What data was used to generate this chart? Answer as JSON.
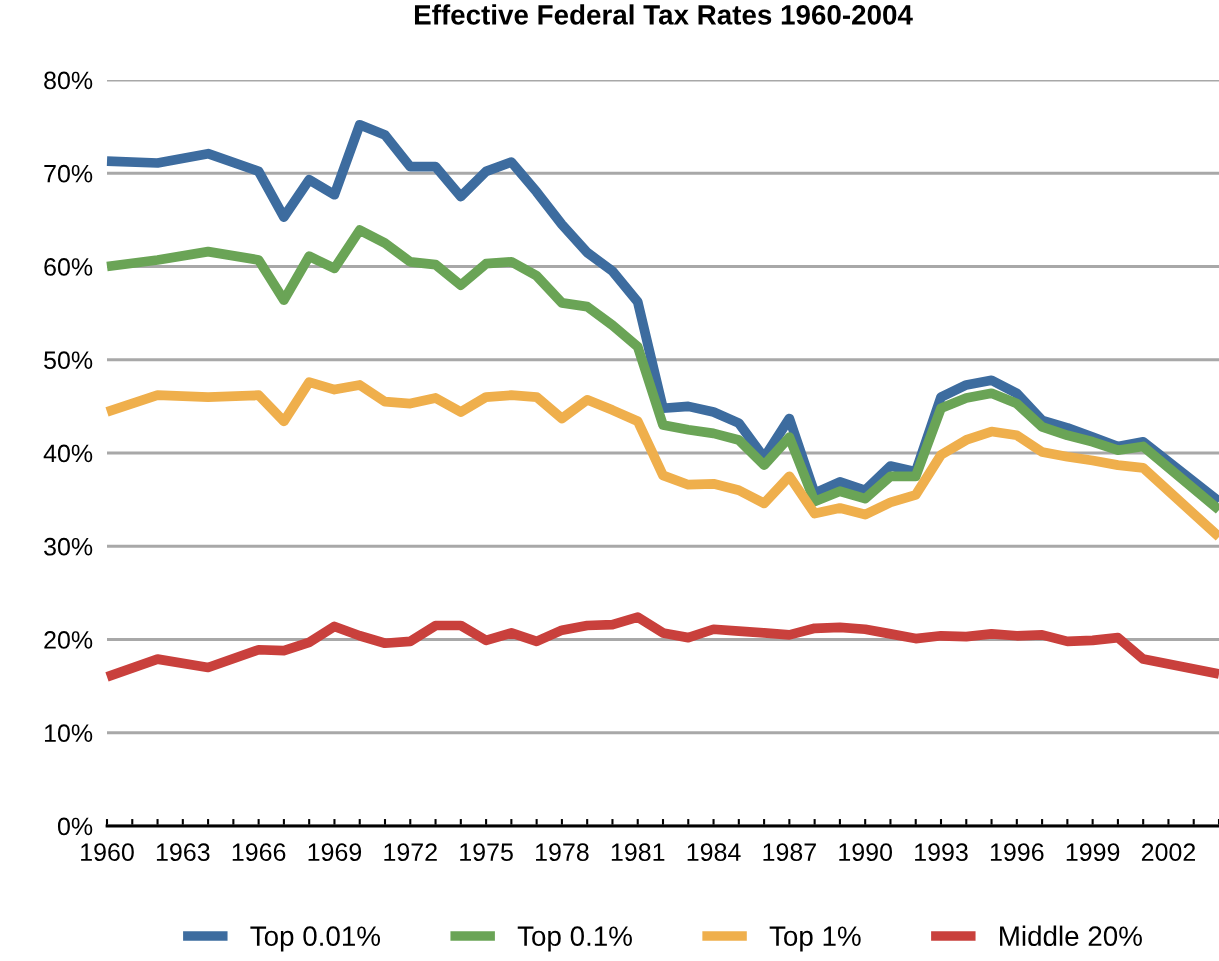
{
  "chart_data": {
    "type": "line",
    "title": "Effective Federal Tax Rates 1960-2004",
    "x": [
      1960,
      1962,
      1964,
      1966,
      1967,
      1968,
      1969,
      1970,
      1971,
      1972,
      1973,
      1974,
      1975,
      1976,
      1977,
      1978,
      1979,
      1980,
      1981,
      1982,
      1983,
      1984,
      1985,
      1986,
      1987,
      1988,
      1989,
      1990,
      1991,
      1992,
      1993,
      1994,
      1995,
      1996,
      1997,
      1998,
      1999,
      2000,
      2001,
      2004
    ],
    "series": [
      {
        "name": "Top 0.01%",
        "color": "#3d6c9f",
        "values": [
          71.3,
          71.1,
          72.1,
          70.2,
          65.3,
          69.3,
          67.7,
          75.2,
          74.1,
          70.7,
          70.7,
          67.5,
          70.2,
          71.2,
          68.0,
          64.5,
          61.5,
          59.5,
          56.2,
          44.8,
          45.0,
          44.4,
          43.2,
          39.5,
          43.7,
          35.7,
          36.9,
          36.0,
          38.6,
          38.0,
          46.0,
          47.3,
          47.8,
          46.4,
          43.5,
          42.7,
          41.7,
          40.7,
          41.2,
          34.8
        ]
      },
      {
        "name": "Top 0.1%",
        "color": "#6aa456",
        "values": [
          60.0,
          60.7,
          61.6,
          60.7,
          56.4,
          61.1,
          59.8,
          63.9,
          62.5,
          60.5,
          60.2,
          58.0,
          60.3,
          60.5,
          59.0,
          56.1,
          55.7,
          53.7,
          51.4,
          43.0,
          42.5,
          42.1,
          41.4,
          38.7,
          41.7,
          34.8,
          35.9,
          35.1,
          37.5,
          37.5,
          44.8,
          45.9,
          46.4,
          45.3,
          42.8,
          41.9,
          41.2,
          40.3,
          40.7,
          33.9
        ]
      },
      {
        "name": "Top 1%",
        "color": "#efaf4c",
        "values": [
          44.4,
          46.2,
          46.0,
          46.2,
          43.4,
          47.6,
          46.8,
          47.3,
          45.5,
          45.3,
          45.9,
          44.4,
          46.0,
          46.2,
          46.0,
          43.7,
          45.7,
          44.6,
          43.4,
          37.6,
          36.6,
          36.7,
          36.0,
          34.6,
          37.5,
          33.5,
          34.1,
          33.4,
          34.7,
          35.5,
          39.8,
          41.4,
          42.3,
          41.9,
          40.1,
          39.6,
          39.2,
          38.7,
          38.4,
          31.0
        ]
      },
      {
        "name": "Middle 20%",
        "color": "#c9403c",
        "values": [
          16.0,
          17.9,
          17.0,
          18.9,
          18.8,
          19.7,
          21.4,
          20.4,
          19.6,
          19.8,
          21.5,
          21.5,
          19.9,
          20.7,
          19.8,
          21.0,
          21.5,
          21.6,
          22.4,
          20.7,
          20.2,
          21.1,
          20.9,
          20.7,
          20.5,
          21.2,
          21.3,
          21.1,
          20.6,
          20.1,
          20.4,
          20.3,
          20.6,
          20.4,
          20.5,
          19.8,
          19.9,
          20.2,
          17.9,
          16.3
        ]
      }
    ],
    "xlim": [
      1960,
      2004
    ],
    "xticks": [
      1960,
      {
        "value": 1961,
        "label": null
      },
      {
        "value": 1962,
        "label": null
      },
      1963,
      {
        "value": 1964,
        "label": null
      },
      {
        "value": 1965,
        "label": null
      },
      1966,
      {
        "value": 1967,
        "label": null
      },
      {
        "value": 1968,
        "label": null
      },
      1969,
      {
        "value": 1970,
        "label": null
      },
      {
        "value": 1971,
        "label": null
      },
      1972,
      {
        "value": 1973,
        "label": null
      },
      {
        "value": 1974,
        "label": null
      },
      1975,
      {
        "value": 1976,
        "label": null
      },
      {
        "value": 1977,
        "label": null
      },
      1978,
      {
        "value": 1979,
        "label": null
      },
      {
        "value": 1980,
        "label": null
      },
      1981,
      {
        "value": 1982,
        "label": null
      },
      {
        "value": 1983,
        "label": null
      },
      1984,
      {
        "value": 1985,
        "label": null
      },
      {
        "value": 1986,
        "label": null
      },
      1987,
      {
        "value": 1988,
        "label": null
      },
      {
        "value": 1989,
        "label": null
      },
      1990,
      {
        "value": 1991,
        "label": null
      },
      {
        "value": 1992,
        "label": null
      },
      1993,
      {
        "value": 1994,
        "label": null
      },
      {
        "value": 1995,
        "label": null
      },
      1996,
      {
        "value": 1997,
        "label": null
      },
      {
        "value": 1998,
        "label": null
      },
      1999,
      {
        "value": 2000,
        "label": null
      },
      {
        "value": 2001,
        "label": null
      },
      2002,
      {
        "value": 2003,
        "label": null
      },
      {
        "value": 2004,
        "label": null
      }
    ],
    "ylim": [
      0,
      80
    ],
    "yticks": [
      {
        "value": 0,
        "label": "0%"
      },
      {
        "value": 10,
        "label": "10%"
      },
      {
        "value": 20,
        "label": "20%"
      },
      {
        "value": 30,
        "label": "30%"
      },
      {
        "value": 40,
        "label": "40%"
      },
      {
        "value": 50,
        "label": "50%"
      },
      {
        "value": 60,
        "label": "60%"
      },
      {
        "value": 70,
        "label": "70%"
      },
      {
        "value": 80,
        "label": "80%"
      }
    ],
    "grid": "y",
    "legend": "bottom",
    "marker": "none",
    "line_style": "solid"
  }
}
